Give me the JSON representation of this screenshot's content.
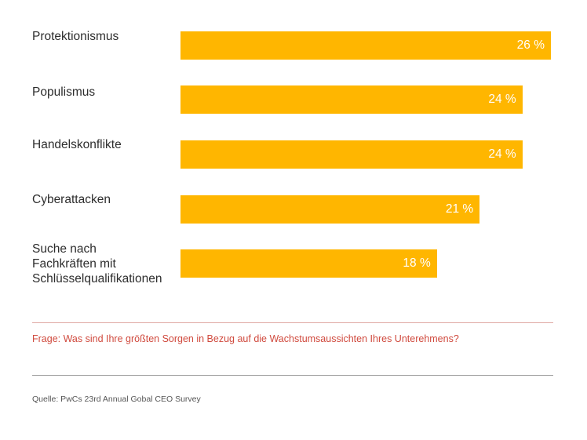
{
  "chart_data": {
    "type": "bar",
    "orientation": "horizontal",
    "categories": [
      "Protektionismus",
      "Populismus",
      "Handelskonflikte",
      "Cyberattacken",
      "Suche nach Fachkräften mit Schlüsselqualifikationen"
    ],
    "category_lines": [
      [
        "Protektionismus"
      ],
      [
        "Populismus"
      ],
      [
        "Handelskonflikte"
      ],
      [
        "Cyberattacken"
      ],
      [
        "Suche nach",
        "Fachkräften mit",
        "Schlüsselqualifikationen"
      ]
    ],
    "values": [
      26,
      24,
      24,
      21,
      18
    ],
    "value_labels": [
      "26 %",
      "24 %",
      "24 %",
      "21 %",
      "18 %"
    ],
    "unit": "%",
    "xlim": [
      0,
      26
    ],
    "grid": false,
    "bar_color": "#FFB600"
  },
  "question": "Frage: Was sind Ihre größten Sorgen in Bezug auf die Wachstumsaussichten Ihres Unterehmens?",
  "source": "Quelle: PwCs 23rd Annual Gobal CEO Survey",
  "colors": {
    "question": "#d04a3e",
    "rule_top": "#e0a9a4",
    "rule_bottom": "#9a9a9a"
  }
}
